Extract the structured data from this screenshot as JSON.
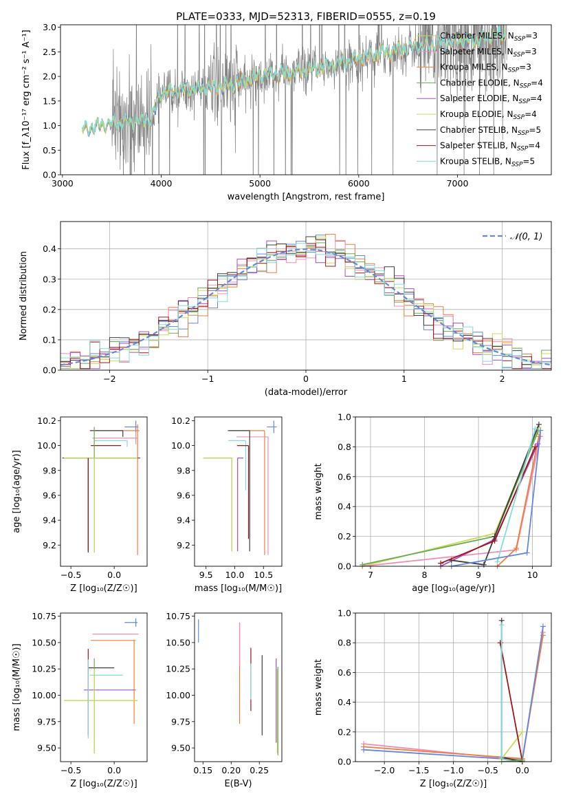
{
  "figure_title": "PLATE=0333, MJD=52313, FIBERID=0555, z=0.19",
  "palette": {
    "grey": "#7f7f7f",
    "blue": "#6486dc",
    "orange": "#ef7d3d",
    "pink": "#f08cb4",
    "green": "#6aa84f",
    "purple": "#a64bc8",
    "yellowgreen": "#c8dc5a",
    "dark": "#3c3c3c",
    "darkred": "#a01414",
    "cyan": "#82dcdc"
  },
  "chart_data": [
    {
      "type": "line",
      "id": "spectrum",
      "xlabel": "wavelength [Angstrom, rest frame]",
      "ylabel": "Flux [f_λ10⁻¹⁷ erg cm⁻² s⁻¹ A⁻¹]",
      "xlim": [
        2980,
        7950
      ],
      "ylim": [
        0,
        3.05
      ],
      "xticks": [
        "3000",
        "4000",
        "5000",
        "6000",
        "7000"
      ],
      "yticks": [
        "0.0",
        "0.5",
        "1.0",
        "1.5",
        "2.0",
        "2.5",
        "3.0"
      ],
      "grid": false,
      "legend_position": "top-right",
      "series": [
        {
          "name": "Chabrier MILES, N_SSP=3",
          "color": "yellowgreen"
        },
        {
          "name": "Salpeter MILES, N_SSP=3",
          "color": "pink"
        },
        {
          "name": "Kroupa MILES, N_SSP=3",
          "color": "orange"
        },
        {
          "name": "Chabrier ELODIE, N_SSP=4",
          "color": "green"
        },
        {
          "name": "Salpeter ELODIE, N_SSP=4",
          "color": "purple"
        },
        {
          "name": "Kroupa ELODIE, N_SSP=4",
          "color": "yellowgreen"
        },
        {
          "name": "Chabrier STELIB, N_SSP=5",
          "color": "dark"
        },
        {
          "name": "Salpeter STELIB, N_SSP=4",
          "color": "darkred"
        },
        {
          "name": "Kroupa STELIB, N_SSP=5",
          "color": "cyan"
        }
      ],
      "continuum": [
        [
          3200,
          0.9
        ],
        [
          3400,
          1.0
        ],
        [
          3700,
          1.05
        ],
        [
          3900,
          1.1
        ],
        [
          4000,
          1.65
        ],
        [
          4200,
          1.7
        ],
        [
          4500,
          1.75
        ],
        [
          4800,
          1.85
        ],
        [
          5000,
          2.0
        ],
        [
          5300,
          2.05
        ],
        [
          5600,
          2.15
        ],
        [
          5900,
          2.3
        ],
        [
          6200,
          2.45
        ],
        [
          6500,
          2.55
        ],
        [
          6800,
          2.65
        ],
        [
          7100,
          2.7
        ],
        [
          7400,
          2.8
        ],
        [
          7500,
          2.85
        ]
      ]
    },
    {
      "type": "line",
      "id": "residuals",
      "xlabel": "(data-model)/error",
      "ylabel": "Normed distribution",
      "xlim": [
        -2.5,
        2.5
      ],
      "ylim": [
        0,
        0.49
      ],
      "xticks": [
        "−2",
        "−1",
        "0",
        "1",
        "2"
      ],
      "yticks": [
        "0.0",
        "0.1",
        "0.2",
        "0.3",
        "0.4"
      ],
      "grid": true,
      "legend_position": "top-right",
      "legend": "𝒩(0, 1)",
      "gaussian": {
        "mean": 0,
        "sigma": 1
      }
    },
    {
      "type": "scatter",
      "id": "age_vs_Z",
      "xlabel": "Z [log₁₀(Z/Z☉)]",
      "ylabel": "age  [log₁₀(age/yr)]",
      "xlim": [
        -0.62,
        0.38
      ],
      "ylim": [
        9.03,
        10.23
      ],
      "xticks": [
        "−0.5",
        "0.0"
      ],
      "yticks": [
        "9.2",
        "9.4",
        "9.6",
        "9.8",
        "10.0",
        "10.2"
      ],
      "points": [
        {
          "x": 0.25,
          "y": 10.15,
          "xerr": [
            0.13,
            0.03
          ],
          "yerr": [
            0.05,
            0.05
          ],
          "color": "blue"
        },
        {
          "x": 0.27,
          "y": 10.12,
          "xerr": [
            0.5,
            0.02
          ],
          "yerr": [
            1.0,
            0.05
          ],
          "color": "orange"
        },
        {
          "x": 0.25,
          "y": 10.06,
          "xerr": [
            0.5,
            0.02
          ],
          "yerr": [
            0.05,
            0.05
          ],
          "color": "pink"
        },
        {
          "x": 0.1,
          "y": 10.12,
          "xerr": [
            0.38,
            0.0
          ],
          "yerr": [
            0.05,
            0.0
          ],
          "color": "dark"
        },
        {
          "x": 0.15,
          "y": 10.04,
          "xerr": [
            0.38,
            0.0
          ],
          "yerr": [
            0.05,
            0.0
          ],
          "color": "cyan"
        },
        {
          "x": 0.08,
          "y": 10.0,
          "xerr": [
            0.35,
            0.0
          ],
          "yerr": [
            0.0,
            0.0
          ],
          "color": "darkred"
        },
        {
          "x": -0.3,
          "y": 9.9,
          "xerr": [
            0.3,
            0.6
          ],
          "yerr": [
            0.76,
            0.0
          ],
          "color": "dark"
        },
        {
          "x": -0.23,
          "y": 9.9,
          "xerr": [
            0.35,
            0.5
          ],
          "yerr": [
            0.76,
            0.25
          ],
          "color": "green"
        },
        {
          "x": -0.23,
          "y": 9.9,
          "xerr": [
            0.35,
            0.5
          ],
          "yerr": [
            0.76,
            0.0
          ],
          "color": "yellowgreen"
        },
        {
          "x": -0.3,
          "y": 9.9,
          "xerr": [
            0.0,
            0.0
          ],
          "yerr": [
            0.75,
            0.0
          ],
          "color": "darkred"
        }
      ]
    },
    {
      "type": "scatter",
      "id": "age_vs_mass",
      "xlabel": "mass [log₁₀(M/M☉)]",
      "ylabel": "",
      "xlim": [
        9.3,
        10.82
      ],
      "ylim": [
        9.03,
        10.23
      ],
      "xticks": [
        "9.5",
        "10.0",
        "10.5"
      ],
      "yticks": [
        "9.2",
        "9.4",
        "9.6",
        "9.8",
        "10.0",
        "10.2"
      ],
      "points": [
        {
          "x": 10.68,
          "y": 10.15,
          "xerr": [
            0.12,
            0.05
          ],
          "yerr": [
            0.05,
            0.05
          ],
          "color": "blue"
        },
        {
          "x": 10.52,
          "y": 10.12,
          "xerr": [
            0.6,
            0.0
          ],
          "yerr": [
            1.0,
            0.0
          ],
          "color": "orange"
        },
        {
          "x": 10.58,
          "y": 10.07,
          "xerr": [
            0.55,
            0.0
          ],
          "yerr": [
            0.95,
            0.0
          ],
          "color": "pink"
        },
        {
          "x": 10.26,
          "y": 10.12,
          "xerr": [
            0.38,
            0.0
          ],
          "yerr": [
            0.97,
            0.0
          ],
          "color": "dark"
        },
        {
          "x": 10.19,
          "y": 10.04,
          "xerr": [
            0.3,
            0.0
          ],
          "yerr": [
            0.4,
            0.0
          ],
          "color": "cyan"
        },
        {
          "x": 10.24,
          "y": 10.0,
          "xerr": [
            0.2,
            0.0
          ],
          "yerr": [
            0.75,
            0.0
          ],
          "color": "darkred"
        },
        {
          "x": 10.05,
          "y": 9.9,
          "xerr": [
            0.0,
            0.1
          ],
          "yerr": [
            0.75,
            0.0
          ],
          "color": "purple"
        },
        {
          "x": 9.95,
          "y": 9.9,
          "xerr": [
            0.5,
            0.0
          ],
          "yerr": [
            0.75,
            0.0
          ],
          "color": "green"
        },
        {
          "x": 9.95,
          "y": 9.9,
          "xerr": [
            0.5,
            0.0
          ],
          "yerr": [
            0.75,
            0.0
          ],
          "color": "yellowgreen"
        }
      ]
    },
    {
      "type": "line",
      "id": "massweight_vs_age",
      "xlabel": "age  [log₁₀(age/yr)]",
      "ylabel": "mass weight",
      "xlim": [
        6.72,
        10.35
      ],
      "ylim": [
        0,
        1.0
      ],
      "xticks": [
        "7",
        "8",
        "9",
        "10"
      ],
      "yticks": [
        "0.0",
        "0.2",
        "0.4",
        "0.6",
        "0.8",
        "1.0"
      ],
      "grid": true,
      "series": [
        {
          "color": "yellowgreen",
          "x": [
            6.85,
            9.3,
            10.12
          ],
          "y": [
            0.0,
            0.22,
            0.93
          ]
        },
        {
          "color": "pink",
          "x": [
            6.85,
            9.7,
            10.15
          ],
          "y": [
            0.0,
            0.11,
            0.87
          ]
        },
        {
          "color": "orange",
          "x": [
            9.35,
            9.7,
            10.12
          ],
          "y": [
            0.0,
            0.12,
            0.87
          ]
        },
        {
          "color": "green",
          "x": [
            6.85,
            9.3,
            10.1
          ],
          "y": [
            0.01,
            0.2,
            0.9
          ]
        },
        {
          "color": "purple",
          "x": [
            8.3,
            9.3,
            10.1
          ],
          "y": [
            0.0,
            0.18,
            0.82
          ]
        },
        {
          "color": "dark",
          "x": [
            8.5,
            9.1,
            9.3,
            10.12
          ],
          "y": [
            0.04,
            0.01,
            0.2,
            0.95
          ]
        },
        {
          "color": "darkred",
          "x": [
            8.3,
            9.3,
            10.05
          ],
          "y": [
            0.02,
            0.17,
            0.8
          ]
        },
        {
          "color": "cyan",
          "x": [
            9.35,
            10.05
          ],
          "y": [
            0.03,
            0.92
          ]
        },
        {
          "color": "blue",
          "x": [
            8.5,
            9.9,
            10.15
          ],
          "y": [
            0.0,
            0.09,
            0.91
          ]
        }
      ]
    },
    {
      "type": "scatter",
      "id": "mass_vs_Z",
      "xlabel": "Z [log₁₀(Z/Z☉)]",
      "ylabel": "mass [log₁₀(M/M☉)]",
      "xlim": [
        -0.62,
        0.38
      ],
      "ylim": [
        9.37,
        10.78
      ],
      "xticks": [
        "−0.5",
        "0.0"
      ],
      "yticks": [
        "9.50",
        "9.75",
        "10.00",
        "10.25",
        "10.50",
        "10.75"
      ],
      "points": [
        {
          "x": 0.25,
          "y": 10.69,
          "xerr": [
            0.13,
            0.02
          ],
          "yerr": [
            0.04,
            0.04
          ],
          "color": "blue"
        },
        {
          "x": 0.25,
          "y": 10.58,
          "xerr": [
            0.5,
            0.03
          ],
          "yerr": [
            0.0,
            0.0
          ],
          "color": "pink"
        },
        {
          "x": 0.23,
          "y": 10.52,
          "xerr": [
            0.5,
            0.02
          ],
          "yerr": [
            0.79,
            0.0
          ],
          "color": "orange"
        },
        {
          "x": 0.0,
          "y": 10.26,
          "xerr": [
            0.3,
            0.0
          ],
          "yerr": [
            0.0,
            0.0
          ],
          "color": "dark"
        },
        {
          "x": 0.1,
          "y": 10.19,
          "xerr": [
            0.38,
            0.0
          ],
          "yerr": [
            0.0,
            0.0
          ],
          "color": "cyan"
        },
        {
          "x": 0.25,
          "y": 10.05,
          "xerr": [
            0.6,
            0.0
          ],
          "yerr": [
            0.0,
            0.0
          ],
          "color": "purple"
        },
        {
          "x": -0.3,
          "y": 10.26,
          "xerr": [
            0.0,
            0.0
          ],
          "yerr": [
            0.64,
            0.18
          ],
          "color": "darkred"
        },
        {
          "x": -0.3,
          "y": 10.19,
          "xerr": [
            0.0,
            0.0
          ],
          "yerr": [
            0.6,
            0.15
          ],
          "color": "cyan"
        },
        {
          "x": -0.23,
          "y": 9.95,
          "xerr": [
            0.35,
            0.5
          ],
          "yerr": [
            0.5,
            0.4
          ],
          "color": "green"
        },
        {
          "x": -0.23,
          "y": 9.95,
          "xerr": [
            0.35,
            0.5
          ],
          "yerr": [
            0.5,
            0.3
          ],
          "color": "yellowgreen"
        }
      ]
    },
    {
      "type": "scatter",
      "id": "mass_vs_EBV",
      "xlabel": "E(B-V)",
      "ylabel": "",
      "xlim": [
        0.135,
        0.29
      ],
      "ylim": [
        9.37,
        10.78
      ],
      "xticks": [
        "0.15",
        "0.20",
        "0.25"
      ],
      "yticks": [
        "9.50",
        "9.75",
        "10.00",
        "10.25",
        "10.50",
        "10.75"
      ],
      "points": [
        {
          "x": 0.142,
          "y": 10.61,
          "yerr": [
            0.11,
            0.11
          ],
          "color": "blue"
        },
        {
          "x": 0.215,
          "y": 10.21,
          "yerr": [
            0.48,
            0.48
          ],
          "color": "orange"
        },
        {
          "x": 0.215,
          "y": 10.48,
          "yerr": [
            0.2,
            0.2
          ],
          "color": "pink"
        },
        {
          "x": 0.235,
          "y": 10.15,
          "yerr": [
            0.3,
            0.3
          ],
          "color": "darkred"
        },
        {
          "x": 0.235,
          "y": 10.13,
          "yerr": [
            0.17,
            0.17
          ],
          "color": "cyan"
        },
        {
          "x": 0.255,
          "y": 10.0,
          "yerr": [
            0.38,
            0.38
          ],
          "color": "dark"
        },
        {
          "x": 0.28,
          "y": 9.95,
          "yerr": [
            0.4,
            0.4
          ],
          "color": "purple"
        },
        {
          "x": 0.282,
          "y": 9.85,
          "yerr": [
            0.4,
            0.4
          ],
          "color": "yellowgreen"
        },
        {
          "x": 0.283,
          "y": 9.85,
          "yerr": [
            0.42,
            0.42
          ],
          "color": "green"
        }
      ]
    },
    {
      "type": "line",
      "id": "massweight_vs_Z",
      "xlabel": "Z [log₁₀(Z/Z☉)]",
      "ylabel": "mass weight",
      "xlim": [
        -2.42,
        0.42
      ],
      "ylim": [
        0,
        1.0
      ],
      "xticks": [
        "−2.0",
        "−1.5",
        "−1.0",
        "−0.5",
        "0.0"
      ],
      "yticks": [
        "0.0",
        "0.2",
        "0.4",
        "0.6",
        "0.8",
        "1.0"
      ],
      "grid": true,
      "series": [
        {
          "color": "pink",
          "x": [
            -2.3,
            0.0,
            0.3
          ],
          "y": [
            0.12,
            0.01,
            0.87
          ]
        },
        {
          "color": "orange",
          "x": [
            -2.3,
            0.0,
            0.3
          ],
          "y": [
            0.1,
            0.02,
            0.85
          ]
        },
        {
          "color": "blue",
          "x": [
            -2.3,
            0.0,
            0.3
          ],
          "y": [
            0.08,
            0.01,
            0.91
          ]
        },
        {
          "color": "yellowgreen",
          "x": [
            -0.3,
            0.0
          ],
          "y": [
            0.02,
            0.2
          ]
        },
        {
          "color": "dark",
          "x": [
            -0.3,
            -0.3,
            0.0
          ],
          "y": [
            0.95,
            0.03,
            0.0
          ]
        },
        {
          "color": "darkred",
          "x": [
            -0.32,
            0.0
          ],
          "y": [
            0.8,
            0.0
          ]
        },
        {
          "color": "cyan",
          "x": [
            -0.3,
            -0.3
          ],
          "y": [
            0.92,
            0.03
          ]
        },
        {
          "color": "green",
          "x": [
            -0.3,
            0.0
          ],
          "y": [
            0.0,
            0.01
          ]
        }
      ]
    }
  ]
}
